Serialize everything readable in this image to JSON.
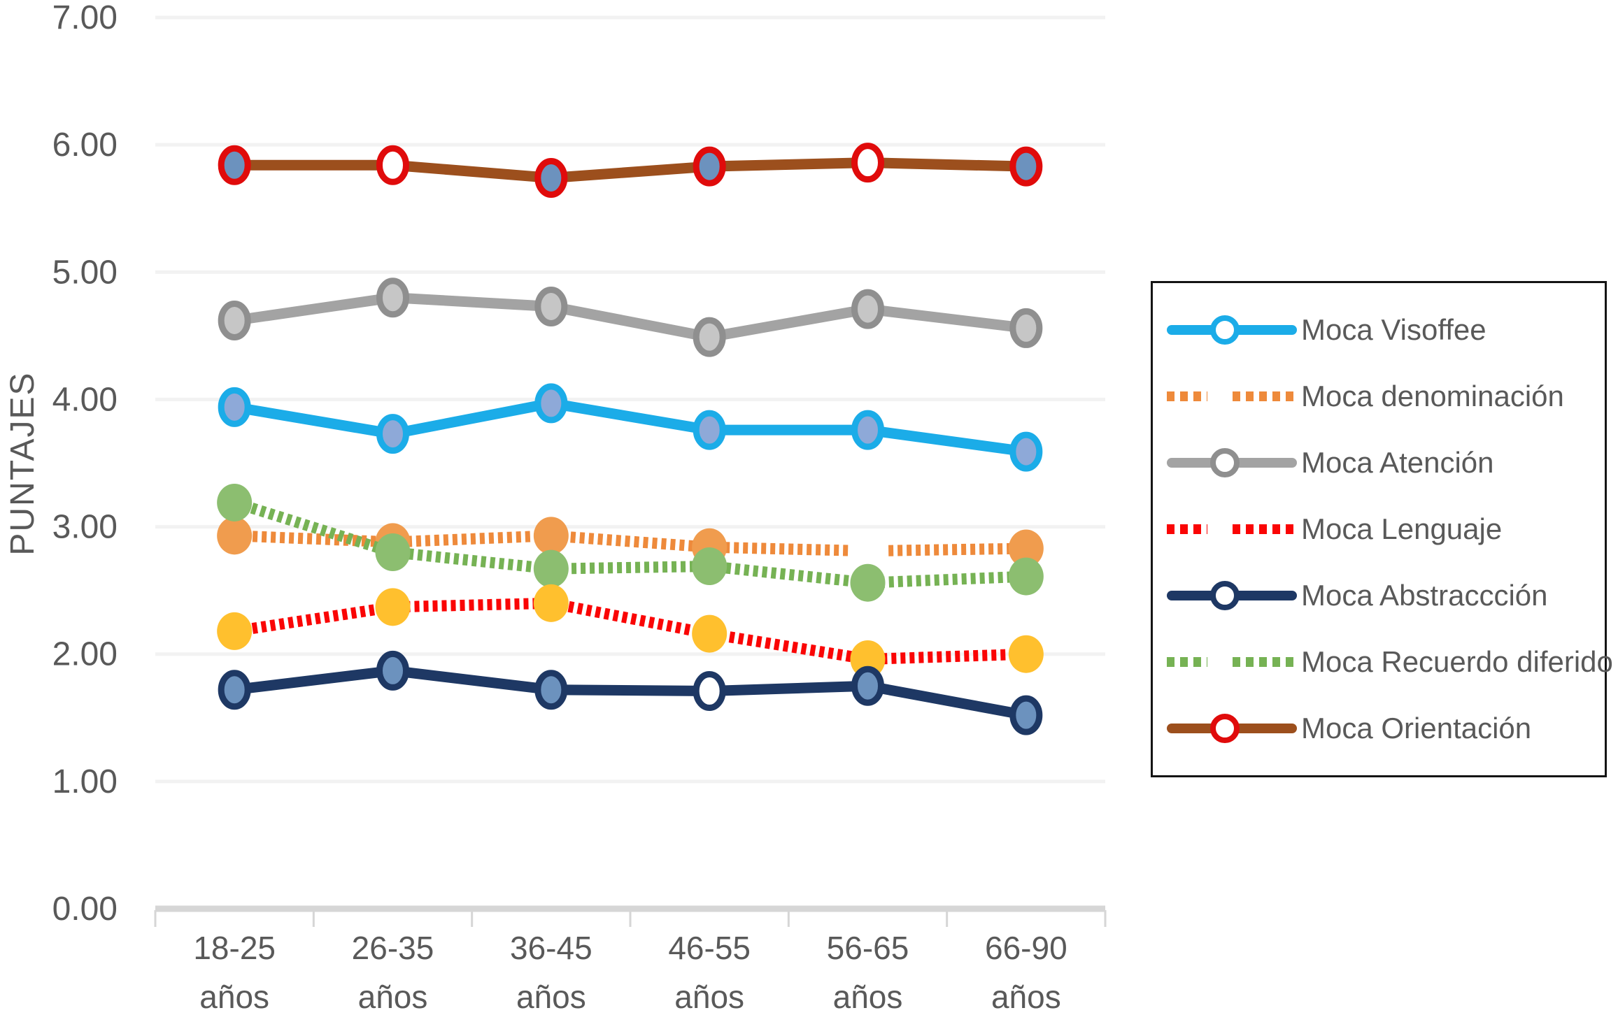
{
  "chart_data": {
    "type": "line",
    "title": "",
    "xlabel": "",
    "ylabel": "PUNTAJES",
    "ylim": [
      0,
      7
    ],
    "y_ticks": [
      "0.00",
      "1.00",
      "2.00",
      "3.00",
      "4.00",
      "5.00",
      "6.00",
      "7.00"
    ],
    "grid": "horizontal-light",
    "legend_position": "right",
    "categories": [
      "18-25",
      "26-35",
      "36-45",
      "46-55",
      "56-65",
      "66-90"
    ],
    "category_unit": "años",
    "colors": {
      "text": "#595959",
      "gridline": "#f2f2f2",
      "axis": "#d6d6d6",
      "legend_border": "#141414"
    },
    "series": [
      {
        "name": "Moca Visoffee",
        "values": [
          3.94,
          3.73,
          3.97,
          3.76,
          3.76,
          3.59
        ],
        "color": "#1bace8",
        "line_style": "solid",
        "marker_ring": "#1bace8",
        "marker_fills": [
          "#8ea9d8",
          "#8ea9d8",
          "#8ea9d8",
          "#8ea9d8",
          "#8ea9d8",
          "#8ea9d8"
        ]
      },
      {
        "name": "Moca denominación",
        "values": [
          2.93,
          2.88,
          2.93,
          2.84,
          2.81,
          2.83
        ],
        "color": "#ee8a3b",
        "line_style": "dashed",
        "marker_ring": "none",
        "marker_fills": [
          "#f09c4e",
          "#f09c4e",
          "#f09c4e",
          "#f09c4e",
          "#ffffff",
          "#f09c4e"
        ]
      },
      {
        "name": "Moca Atención",
        "values": [
          4.62,
          4.8,
          4.73,
          4.49,
          4.71,
          4.56
        ],
        "color": "#a3a3a3",
        "line_style": "solid",
        "marker_ring": "#8f8f8f",
        "marker_fills": [
          "#c6c6c6",
          "#c6c6c6",
          "#c6c6c6",
          "#c6c6c6",
          "#c6c6c6",
          "#c6c6c6"
        ]
      },
      {
        "name": "Moca Lenguaje",
        "values": [
          2.18,
          2.37,
          2.4,
          2.16,
          1.96,
          2.0
        ],
        "color": "#fa0505",
        "line_style": "dashed",
        "marker_ring": "none",
        "marker_fills": [
          "#ffc02e",
          "#ffc02e",
          "#ffc02e",
          "#ffc02e",
          "#ffc02e",
          "#ffc02e"
        ]
      },
      {
        "name": "Moca Abstraccción",
        "values": [
          1.72,
          1.87,
          1.72,
          1.71,
          1.75,
          1.52
        ],
        "color": "#1e3864",
        "line_style": "solid",
        "marker_ring": "#1e3864",
        "marker_fills": [
          "#6c92be",
          "#6c92be",
          "#6c92be",
          "#ffffff",
          "#6c92be",
          "#6c92be"
        ]
      },
      {
        "name": "Moca Recuerdo diferido",
        "values": [
          3.19,
          2.8,
          2.67,
          2.69,
          2.56,
          2.61
        ],
        "color": "#76b254",
        "line_style": "dashed",
        "marker_ring": "none",
        "marker_fills": [
          "#8cbe70",
          "#8cbe70",
          "#8cbe70",
          "#8cbe70",
          "#8cbe70",
          "#8cbe70"
        ]
      },
      {
        "name": "Moca Orientación",
        "values": [
          5.84,
          5.84,
          5.74,
          5.83,
          5.86,
          5.83
        ],
        "color": "#9c4f1d",
        "line_style": "solid",
        "marker_ring": "#e00b0b",
        "marker_fills": [
          "#6c92be",
          "#ffffff",
          "#6c92be",
          "#6c92be",
          "#ffffff",
          "#6c92be"
        ]
      }
    ],
    "draw_order": [
      6,
      2,
      0,
      1,
      5,
      3,
      4
    ]
  }
}
